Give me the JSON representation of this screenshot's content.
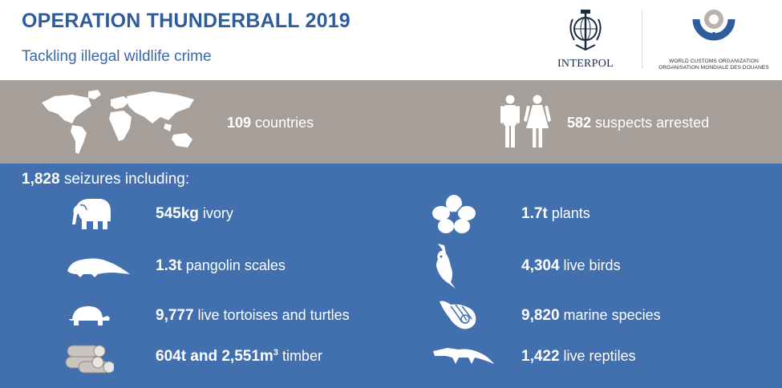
{
  "header": {
    "title": "OPERATION THUNDERBALL 2019",
    "subtitle": "Tackling illegal wildlife crime",
    "interpol_label": "INTERPOL",
    "wco_label_line1": "WORLD CUSTOMS ORGANIZATION",
    "wco_label_line2": "ORGANISATION MONDIALE DES DOUANES"
  },
  "summary": {
    "countries_number": "109",
    "countries_label": " countries",
    "suspects_number": "582",
    "suspects_label": " suspects arrested"
  },
  "seizures": {
    "number": "1,828",
    "label": " seizures including:"
  },
  "items": [
    {
      "number": "545kg",
      "label": " ivory",
      "icon": "elephant-icon"
    },
    {
      "number": "1.7t",
      "label": " plants",
      "icon": "hibiscus-icon"
    },
    {
      "number": "1.3t",
      "label": " pangolin scales",
      "icon": "pangolin-icon"
    },
    {
      "number": "4,304",
      "label": " live birds",
      "icon": "cockatoo-icon"
    },
    {
      "number": "9,777",
      "label": " live tortoises and turtles",
      "icon": "tortoise-icon"
    },
    {
      "number": "9,820",
      "label": " marine species",
      "icon": "seashell-icon"
    },
    {
      "number": "604t and 2,551m",
      "sup": "3",
      "label": " timber",
      "icon": "timber-icon"
    },
    {
      "number": "1,422",
      "label": " live reptiles",
      "icon": "crocodile-icon"
    }
  ],
  "colors": {
    "title_blue": "#2e5c9c",
    "grey_band": "#a59e99",
    "blue_panel": "#426fad"
  }
}
